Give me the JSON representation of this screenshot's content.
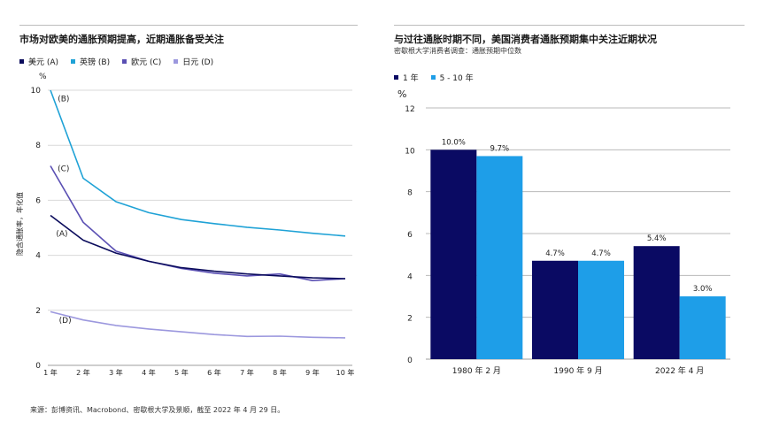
{
  "left": {
    "title": "市场对欧美的通胀预期提高，近期通胀备受关注",
    "unit": "%",
    "ylabel": "隐含通胀率，年化值",
    "colors": {
      "A": "#0b0c5c",
      "B": "#1fa2d6",
      "C": "#5a4fb3",
      "D": "#9c98de"
    },
    "legend": [
      {
        "key": "A",
        "label": "美元 (A)",
        "color": "#0b0c5c"
      },
      {
        "key": "B",
        "label": "英镑 (B)",
        "color": "#1fa2d6"
      },
      {
        "key": "C",
        "label": "欧元 (C)",
        "color": "#5a4fb3"
      },
      {
        "key": "D",
        "label": "日元 (D)",
        "color": "#9c98de"
      }
    ]
  },
  "right": {
    "title": "与过往通胀时期不同，美国消费者通胀预期集中关注近期状况",
    "subtitle": "密歇根大学消费者调查：通胀预期中位数",
    "unit": "%",
    "colors": {
      "s1": "#0a0a63",
      "s2": "#1e9ee8"
    },
    "legend": [
      {
        "label": "1 年",
        "color": "#0a0a63"
      },
      {
        "label": "5 - 10 年",
        "color": "#1e9ee8"
      }
    ]
  },
  "source": "来源：彭博资讯、Macrobond、密歇根大学及景顺，截至 2022 年 4 月 29 日。",
  "chart_data": [
    {
      "type": "line",
      "title": "市场对欧美的通胀预期提高，近期通胀备受关注",
      "xlabel": "",
      "ylabel": "隐含通胀率，年化值",
      "x": [
        "1 年",
        "2 年",
        "3 年",
        "4 年",
        "5 年",
        "6 年",
        "7 年",
        "8 年",
        "9 年",
        "10 年"
      ],
      "ylim": [
        0,
        10
      ],
      "yticks": [
        0,
        2,
        4,
        6,
        8,
        10
      ],
      "grid": true,
      "legend_position": "top-left",
      "series": [
        {
          "name": "美元 (A)",
          "key": "A",
          "label": "(A)",
          "values": [
            5.45,
            4.55,
            4.08,
            3.78,
            3.55,
            3.42,
            3.32,
            3.25,
            3.18,
            3.15
          ]
        },
        {
          "name": "英镑 (B)",
          "key": "B",
          "label": "(B)",
          "values": [
            10.0,
            6.8,
            5.95,
            5.55,
            5.3,
            5.15,
            5.02,
            4.92,
            4.8,
            4.7
          ]
        },
        {
          "name": "欧元 (C)",
          "key": "C",
          "label": "(C)",
          "values": [
            7.25,
            5.2,
            4.15,
            3.78,
            3.52,
            3.35,
            3.25,
            3.32,
            3.08,
            3.15
          ]
        },
        {
          "name": "日元 (D)",
          "key": "D",
          "label": "(D)",
          "values": [
            1.95,
            1.65,
            1.45,
            1.32,
            1.22,
            1.12,
            1.05,
            1.06,
            1.02,
            1.0
          ]
        }
      ]
    },
    {
      "type": "bar",
      "title": "与过往通胀时期不同，美国消费者通胀预期集中关注近期状况",
      "subtitle": "密歇根大学消费者调查：通胀预期中位数",
      "categories": [
        "1980 年 2 月",
        "1990 年 9 月",
        "2022 年 4 月"
      ],
      "ylim": [
        0,
        12
      ],
      "yticks": [
        0,
        2,
        4,
        6,
        8,
        10,
        12
      ],
      "grid": true,
      "legend_position": "top-left",
      "series": [
        {
          "name": "1 年",
          "values": [
            10.0,
            4.7,
            5.4
          ],
          "labels": [
            "10.0%",
            "4.7%",
            "5.4%"
          ]
        },
        {
          "name": "5 - 10 年",
          "values": [
            9.7,
            4.7,
            3.0
          ],
          "labels": [
            "9.7%",
            "4.7%",
            "3.0%"
          ]
        }
      ]
    }
  ]
}
